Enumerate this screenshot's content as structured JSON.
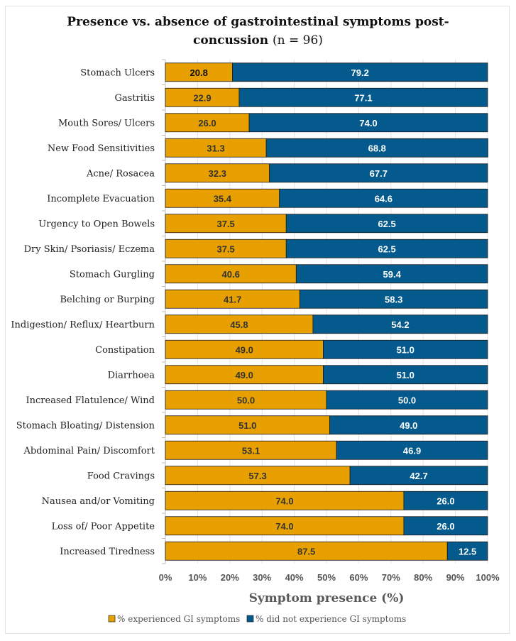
{
  "chart_data": {
    "type": "bar",
    "orientation": "horizontal",
    "stacked": true,
    "title": "Presence vs. absence of gastrointestinal symptoms post-concussion",
    "title_line1": "Presence vs. absence of gastrointestinal symptoms post-",
    "title_line2": "concussion",
    "title_n": "(n = 96)",
    "xlabel": "Symptom presence (%)",
    "ylabel": "",
    "xlim": [
      0,
      100
    ],
    "xticks": [
      "0%",
      "10%",
      "20%",
      "30%",
      "40%",
      "50%",
      "60%",
      "70%",
      "80%",
      "90%",
      "100%"
    ],
    "grid": true,
    "legend_position": "bottom",
    "categories": [
      "Stomach Ulcers",
      "Gastritis",
      "Mouth Sores/ Ulcers",
      "New Food Sensitivities",
      "Acne/ Rosacea",
      "Incomplete Evacuation",
      "Urgency to Open Bowels",
      "Dry Skin/ Psoriasis/ Eczema",
      "Stomach Gurgling",
      "Belching or Burping",
      "Indigestion/ Reflux/ Heartburn",
      "Constipation",
      "Diarrhoea",
      "Increased Flatulence/ Wind",
      "Stomach Bloating/ Distension",
      "Abdominal Pain/ Discomfort",
      "Food Cravings",
      "Nausea and/or Vomiting",
      "Loss of/ Poor Appetite",
      "Increased Tiredness"
    ],
    "series": [
      {
        "name": "% experienced GI symptoms",
        "color": "#E8A000",
        "label_color": "#333333",
        "values": [
          20.8,
          22.9,
          26.0,
          31.3,
          32.3,
          35.4,
          37.5,
          37.5,
          40.6,
          41.7,
          45.8,
          49.0,
          49.0,
          50.0,
          51.0,
          53.1,
          57.3,
          74.0,
          74.0,
          87.5
        ]
      },
      {
        "name": "% did not experience GI symptoms",
        "color": "#045A8D",
        "label_color": "#FFFFFF",
        "values": [
          79.2,
          77.1,
          74.0,
          68.8,
          67.7,
          64.6,
          62.5,
          62.5,
          59.4,
          58.3,
          54.2,
          51.0,
          51.0,
          50.0,
          49.0,
          46.9,
          42.7,
          26.0,
          26.0,
          12.5
        ]
      }
    ]
  }
}
